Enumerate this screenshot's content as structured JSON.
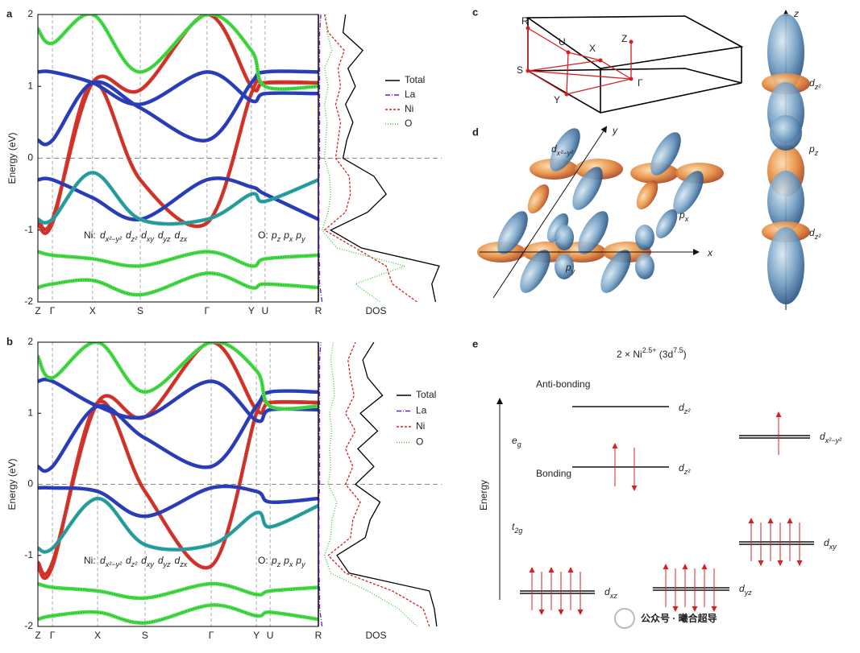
{
  "chart_data": [
    {
      "type": "band",
      "panel_label": "a",
      "y_label": "Energy (eV)",
      "ylim": [
        -2,
        2
      ],
      "yticks": [
        -2,
        -1,
        0,
        1,
        2
      ],
      "xlim": [
        0,
        1
      ],
      "x": [
        0,
        0.052,
        0.195,
        0.365,
        0.603,
        0.761,
        0.81,
        1
      ],
      "x_labels": [
        "Z",
        "Γ",
        "X",
        "S",
        "Γ",
        "Y",
        "U",
        "R"
      ],
      "fermi_level": 0,
      "orbital_prefix_ni": "Ni:",
      "orbitals_ni": [
        {
          "main": "d",
          "sub": "x²−y²",
          "color": "#d62020"
        },
        {
          "main": "d",
          "sub": "z²",
          "color": "#2838a8"
        },
        {
          "main": "d",
          "sub": "xy",
          "color": "#8a2be2"
        },
        {
          "main": "d",
          "sub": "yz",
          "color": "#4a9a3a"
        },
        {
          "main": "d",
          "sub": "zx",
          "color": "#1a2a6a"
        }
      ],
      "orbital_prefix_o": "O:",
      "orbitals_o": [
        {
          "main": "p",
          "sub": "z",
          "color": "#33cc33"
        },
        {
          "main": "p",
          "sub": "x",
          "color": "#33cc33"
        },
        {
          "main": "p",
          "sub": "y",
          "color": "#33cc33"
        }
      ],
      "series": [
        {
          "color": "#d9352a",
          "values": [
            -0.9,
            -0.9,
            1.05,
            -0.3,
            -0.9,
            0.9,
            1.05,
            1.05
          ]
        },
        {
          "color": "#d9352a",
          "values": [
            -0.85,
            -0.85,
            1.05,
            0.95,
            2.0,
            1.0,
            1.05,
            1.05
          ]
        },
        {
          "color": "#2b3fbf",
          "values": [
            0.25,
            0.25,
            1.05,
            0.7,
            0.25,
            1.05,
            1.2,
            1.2
          ]
        },
        {
          "color": "#2b3fbf",
          "values": [
            1.2,
            1.2,
            1.05,
            0.75,
            1.2,
            0.8,
            0.9,
            0.9
          ]
        },
        {
          "color": "#2b3fbf",
          "values": [
            -0.3,
            -0.3,
            -0.55,
            -0.85,
            -0.3,
            -0.4,
            -0.5,
            -0.85
          ]
        },
        {
          "color": "#2aa3a3",
          "values": [
            -0.85,
            -0.85,
            -0.2,
            -0.85,
            -0.85,
            -0.5,
            -0.6,
            -0.3
          ]
        },
        {
          "color": "#44dd44",
          "values": [
            1.8,
            1.6,
            2.0,
            1.2,
            2.0,
            1.5,
            1.0,
            1.0
          ]
        },
        {
          "color": "#44dd44",
          "values": [
            -1.3,
            -1.35,
            -1.4,
            -1.5,
            -1.3,
            -1.5,
            -1.4,
            -1.35
          ]
        },
        {
          "color": "#44dd44",
          "values": [
            -1.8,
            -1.75,
            -1.7,
            -1.9,
            -1.6,
            -1.8,
            -1.75,
            -1.8
          ]
        }
      ],
      "dos": {
        "x_label": "DOS",
        "xlim": [
          0,
          10
        ],
        "energies": [
          -2,
          -1.75,
          -1.5,
          -1.25,
          -1,
          -0.75,
          -0.5,
          -0.25,
          0,
          0.25,
          0.5,
          0.75,
          1,
          1.25,
          1.5,
          1.75,
          2
        ],
        "series": [
          {
            "name": "Total",
            "color": "#000000",
            "dash": "none",
            "values": [
              9.5,
              9.2,
              9.8,
              3.5,
              1.0,
              4.0,
              5.5,
              4.5,
              2.0,
              2.3,
              2.8,
              2.2,
              3.0,
              2.4,
              3.6,
              2.0,
              2.2
            ]
          },
          {
            "name": "La",
            "color": "#6a1bd6",
            "dash": "6 2 1 2",
            "values": [
              0.3,
              0.1,
              0.1,
              0.05,
              0.05,
              0.05,
              0.05,
              0.05,
              0.1,
              0.1,
              0.1,
              0.1,
              0.1,
              0.1,
              0.1,
              0.1,
              0.2
            ]
          },
          {
            "name": "Ni",
            "color": "#d62020",
            "dash": "3 2",
            "values": [
              8,
              6,
              5.5,
              3.0,
              0.5,
              2.2,
              2.6,
              2.5,
              1.4,
              1.6,
              1.8,
              1.4,
              1.8,
              1.6,
              2.1,
              0.8,
              0.5
            ]
          },
          {
            "name": "O",
            "color": "#33cc33",
            "dash": "1 2",
            "values": [
              5,
              3,
              7,
              1.5,
              0.3,
              0.8,
              1.0,
              0.9,
              0.5,
              0.6,
              0.7,
              0.5,
              0.8,
              0.5,
              1.1,
              0.7,
              0.6
            ]
          }
        ]
      }
    },
    {
      "type": "band",
      "panel_label": "b",
      "y_label": "Energy (eV)",
      "ylim": [
        -2,
        2
      ],
      "yticks": [
        -2,
        -1,
        0,
        1,
        2
      ],
      "xlim": [
        0,
        1
      ],
      "x": [
        0,
        0.052,
        0.213,
        0.382,
        0.618,
        0.779,
        0.828,
        1
      ],
      "x_labels": [
        "Z",
        "Γ",
        "X",
        "S",
        "Γ",
        "Y",
        "U",
        "R"
      ],
      "fermi_level": 0,
      "orbital_prefix_ni": "Ni:",
      "orbitals_ni": [
        {
          "main": "d",
          "sub": "x²−y²",
          "color": "#d62020"
        },
        {
          "main": "d",
          "sub": "z²",
          "color": "#2838a8"
        },
        {
          "main": "d",
          "sub": "xy",
          "color": "#8a2be2"
        },
        {
          "main": "d",
          "sub": "yz",
          "color": "#4a9a3a"
        },
        {
          "main": "d",
          "sub": "zx",
          "color": "#1a2a6a"
        }
      ],
      "orbital_prefix_o": "O:",
      "orbitals_o": [
        {
          "main": "p",
          "sub": "z",
          "color": "#33cc33"
        },
        {
          "main": "p",
          "sub": "x",
          "color": "#33cc33"
        },
        {
          "main": "p",
          "sub": "y",
          "color": "#33cc33"
        }
      ],
      "series": [
        {
          "color": "#d9352a",
          "values": [
            -1.15,
            -1.15,
            1.15,
            -0.1,
            -1.15,
            1.0,
            1.15,
            1.15
          ]
        },
        {
          "color": "#d9352a",
          "values": [
            -1.1,
            -1.1,
            1.15,
            0.95,
            2.0,
            1.05,
            1.15,
            1.15
          ]
        },
        {
          "color": "#2b3fbf",
          "values": [
            0.25,
            0.25,
            1.1,
            0.65,
            0.25,
            1.1,
            1.3,
            1.3
          ]
        },
        {
          "color": "#2b3fbf",
          "values": [
            1.45,
            1.45,
            1.1,
            0.95,
            1.45,
            0.9,
            1.05,
            1.05
          ]
        },
        {
          "color": "#2b3fbf",
          "values": [
            -0.05,
            -0.05,
            -0.1,
            -0.45,
            -0.05,
            -0.1,
            -0.25,
            -0.2
          ]
        },
        {
          "color": "#2aa3a3",
          "values": [
            -0.9,
            -0.9,
            -0.2,
            -0.85,
            -0.85,
            -0.4,
            -0.6,
            -0.3
          ]
        },
        {
          "color": "#44dd44",
          "values": [
            1.8,
            1.5,
            2.0,
            1.3,
            2.0,
            1.6,
            1.1,
            1.1
          ]
        },
        {
          "color": "#44dd44",
          "values": [
            -1.4,
            -1.45,
            -1.5,
            -1.6,
            -1.4,
            -1.55,
            -1.5,
            -1.45
          ]
        },
        {
          "color": "#44dd44",
          "values": [
            -1.9,
            -1.85,
            -1.8,
            -1.95,
            -1.7,
            -1.85,
            -1.8,
            -1.9
          ]
        }
      ],
      "dos": {
        "x_label": "DOS",
        "xlim": [
          0,
          10
        ],
        "energies": [
          -2,
          -1.75,
          -1.5,
          -1.25,
          -1,
          -0.75,
          -0.5,
          -0.25,
          0,
          0.25,
          0.5,
          0.75,
          1,
          1.25,
          1.5,
          1.75,
          2
        ],
        "series": [
          {
            "name": "Total",
            "color": "#000000",
            "dash": "none",
            "values": [
              9.6,
              9.4,
              9.0,
              2.5,
              1.5,
              3.8,
              4.2,
              5.0,
              3.0,
              4.5,
              3.2,
              4.8,
              3.4,
              5.2,
              4.0,
              3.6,
              4.5
            ]
          },
          {
            "name": "La",
            "color": "#6a1bd6",
            "dash": "6 2 1 2",
            "values": [
              0.3,
              0.1,
              0.1,
              0.05,
              0.05,
              0.05,
              0.05,
              0.05,
              0.1,
              0.1,
              0.1,
              0.1,
              0.1,
              0.1,
              0.1,
              0.1,
              0.2
            ]
          },
          {
            "name": "Ni",
            "color": "#d62020",
            "dash": "3 2",
            "values": [
              9.0,
              8.5,
              6.0,
              2.2,
              0.8,
              2.6,
              2.8,
              3.4,
              2.2,
              2.8,
              2.2,
              3.0,
              2.2,
              2.9,
              2.6,
              2.4,
              3.0
            ]
          },
          {
            "name": "O",
            "color": "#33cc33",
            "dash": "1 2",
            "values": [
              8.0,
              6.5,
              4.0,
              1.0,
              0.5,
              1.0,
              1.1,
              1.5,
              0.8,
              1.0,
              0.9,
              1.1,
              0.9,
              1.3,
              1.2,
              1.0,
              1.2
            ]
          }
        ]
      }
    }
  ],
  "panel_c": {
    "label": "c",
    "points": [
      "R",
      "U",
      "X",
      "Z",
      "S",
      "Γ",
      "Y"
    ]
  },
  "panel_d": {
    "label": "d",
    "axis_x": "x",
    "axis_y": "y",
    "axis_z": "z",
    "orbitals": [
      {
        "main": "d",
        "sub": "x²−y²"
      },
      {
        "main": "p",
        "sub": "x"
      },
      {
        "main": "p",
        "sub": "y"
      },
      {
        "main": "d",
        "sub": "z²"
      },
      {
        "main": "p",
        "sub": "z"
      },
      {
        "main": "d",
        "sub": "z²"
      }
    ]
  },
  "panel_e": {
    "label": "e",
    "title": {
      "prefix": "2 × Ni",
      "sup_a": "2.5+",
      "mid": " (3d",
      "sup_b": "7.5",
      "suffix": ")"
    },
    "axis_label": "Energy",
    "anti_bonding": "Anti-bonding",
    "bonding": "Bonding",
    "eg": {
      "main": "e",
      "sub": "g"
    },
    "t2g": {
      "main": "t",
      "sub": "2g"
    },
    "levels": [
      {
        "main": "d",
        "sub": "z²"
      },
      {
        "main": "d",
        "sub": "z²"
      },
      {
        "main": "d",
        "sub": "x²−y²"
      },
      {
        "main": "d",
        "sub": "xy"
      },
      {
        "main": "d",
        "sub": "xz"
      },
      {
        "main": "d",
        "sub": "yz"
      }
    ]
  },
  "watermark": "公众号 · 曦合超导"
}
